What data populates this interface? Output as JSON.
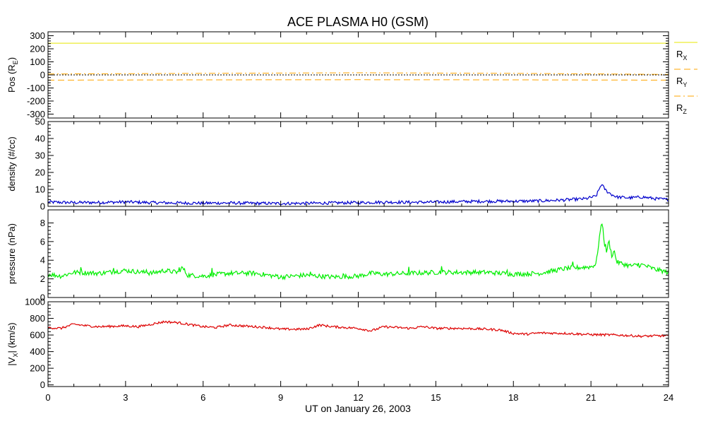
{
  "title": "ACE PLASMA H0 (GSM)",
  "xlabel": "UT on January 26, 2003",
  "x_ticks": [
    "0",
    "3",
    "6",
    "9",
    "12",
    "15",
    "18",
    "21",
    "24"
  ],
  "colors": {
    "rx": "#e8e800",
    "ry": "#ffa500",
    "rz": "#ffa500",
    "density": "#0000cc",
    "pressure": "#00ee00",
    "vx": "#dd0000"
  },
  "chart_data": [
    {
      "type": "line",
      "ylabel_main": "Pos (R",
      "ylabel_sub": "E",
      "ylabel_tail": ")",
      "ylim": [
        -330,
        330
      ],
      "y_ticks": [
        "300",
        "200",
        "100",
        "0",
        "-100",
        "-200",
        "-300"
      ],
      "y_tick_values": [
        300,
        200,
        100,
        0,
        -100,
        -200,
        -300
      ],
      "zero_line": true,
      "x_range": [
        0,
        24
      ],
      "series": [
        {
          "name": "R",
          "sub": "X",
          "style": "solid",
          "color": "#e8e800",
          "x": [
            0,
            24
          ],
          "y": [
            243,
            243
          ]
        },
        {
          "name": "R",
          "sub": "Y",
          "style": "dashed",
          "color": "#ffa500",
          "x": [
            0,
            6,
            12,
            18,
            24
          ],
          "y": [
            -40,
            -38,
            -37,
            -38,
            -40
          ]
        },
        {
          "name": "R",
          "sub": "Z",
          "style": "dashdot",
          "color": "#ffa500",
          "x": [
            0,
            6,
            12,
            18,
            24
          ],
          "y": [
            7,
            12,
            16,
            12,
            4
          ]
        }
      ]
    },
    {
      "type": "line",
      "ylabel": "density (#/cc)",
      "ylim": [
        0,
        50
      ],
      "y_ticks": [
        "50",
        "40",
        "30",
        "20",
        "10",
        "0"
      ],
      "y_tick_values": [
        50,
        40,
        30,
        20,
        10,
        0
      ],
      "x_range": [
        0,
        24
      ],
      "series": [
        {
          "name": "",
          "color": "#0000cc",
          "x": [
            0,
            1,
            2,
            3,
            4,
            5,
            6,
            7,
            8,
            9,
            10,
            11,
            12,
            13,
            14,
            15,
            16,
            17,
            18,
            19,
            20,
            20.8,
            21.2,
            21.4,
            21.5,
            21.6,
            21.8,
            22,
            22.5,
            23,
            23.5,
            24
          ],
          "y": [
            2.5,
            2.2,
            2.3,
            2.6,
            2.2,
            2.0,
            1.9,
            2.0,
            1.8,
            1.7,
            1.8,
            2.0,
            2.2,
            2.5,
            2.4,
            2.5,
            2.8,
            3.0,
            3.0,
            3.2,
            3.8,
            4.5,
            6,
            13,
            11,
            9,
            7,
            5.5,
            5,
            5.5,
            4.5,
            4
          ]
        }
      ]
    },
    {
      "type": "line",
      "ylabel": "pressure (nPa)",
      "ylim": [
        0,
        9.4
      ],
      "y_ticks": [
        "8",
        "6",
        "4",
        "2",
        "0"
      ],
      "y_tick_values": [
        8,
        6,
        4,
        2,
        0
      ],
      "x_range": [
        0,
        24
      ],
      "series": [
        {
          "name": "",
          "color": "#00ee00",
          "x": [
            0,
            0.5,
            1,
            2,
            3,
            4,
            4.5,
            5,
            5.2,
            5.4,
            6,
            7,
            8,
            9,
            10,
            11,
            12,
            12.5,
            13,
            14,
            15,
            16,
            17,
            18,
            19,
            20,
            20.5,
            21,
            21.2,
            21.35,
            21.45,
            21.5,
            21.6,
            21.7,
            21.8,
            21.9,
            22,
            22.5,
            23,
            23.5,
            24
          ],
          "y": [
            2.5,
            2.3,
            2.7,
            2.6,
            2.9,
            2.6,
            2.9,
            2.7,
            3.2,
            2.4,
            2.3,
            2.6,
            2.6,
            2.2,
            2.4,
            2.2,
            2.3,
            2.6,
            2.5,
            2.6,
            2.7,
            2.7,
            2.7,
            2.5,
            2.6,
            3.1,
            3.2,
            3.3,
            3.6,
            7.0,
            8.2,
            6.0,
            5.0,
            6.0,
            4.5,
            5.0,
            3.8,
            3.4,
            3.5,
            3.0,
            2.7
          ]
        }
      ]
    },
    {
      "type": "line",
      "ylabel_main": "|V",
      "ylabel_sub": "X",
      "ylabel_tail": "| (km/s)",
      "ylim": [
        -20,
        1000
      ],
      "y_ticks": [
        "1000",
        "800",
        "600",
        "400",
        "200",
        "0"
      ],
      "y_tick_values": [
        1000,
        800,
        600,
        400,
        200,
        0
      ],
      "x_range": [
        0,
        24
      ],
      "series": [
        {
          "name": "",
          "color": "#dd0000",
          "x": [
            0,
            0.5,
            1,
            1.5,
            2,
            3,
            3.5,
            4,
            4.5,
            5,
            6,
            6.5,
            7,
            8,
            8.5,
            9,
            10,
            10.5,
            11,
            12,
            12.5,
            13,
            14,
            14.5,
            15,
            16,
            17,
            17.5,
            18,
            18.5,
            19,
            20,
            21,
            22,
            23,
            23.5,
            24
          ],
          "y": [
            690,
            680,
            730,
            710,
            700,
            710,
            700,
            730,
            760,
            750,
            700,
            690,
            720,
            700,
            690,
            670,
            670,
            720,
            700,
            680,
            650,
            700,
            680,
            700,
            680,
            680,
            670,
            660,
            620,
            610,
            625,
            620,
            605,
            600,
            585,
            590,
            590
          ]
        }
      ]
    }
  ]
}
